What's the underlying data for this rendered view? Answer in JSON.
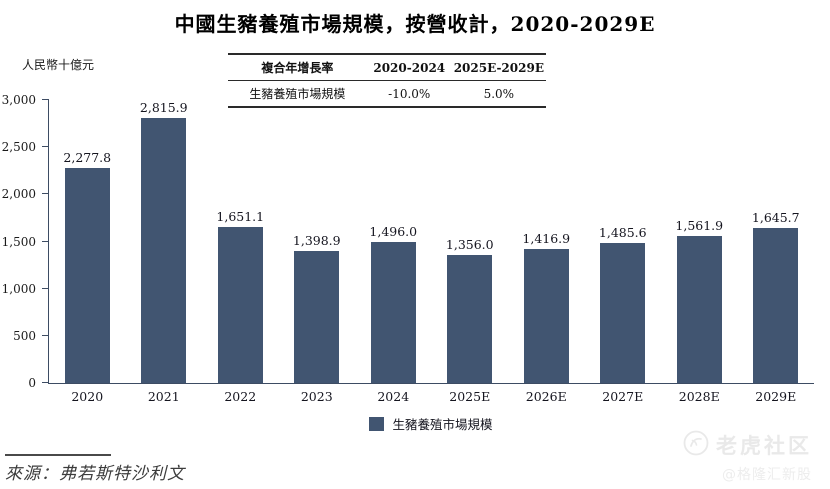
{
  "title": "中國生豬養殖市場規模，按營收計，2020-2029E",
  "unit_label": "人民幣十億元",
  "cagr_table": {
    "header": [
      "複合年增長率",
      "2020-2024",
      "2025E-2029E"
    ],
    "rows": [
      [
        "生豬養殖市場規模",
        "-10.0%",
        "5.0%"
      ]
    ]
  },
  "chart_data": {
    "type": "bar",
    "title": "中國生豬養殖市場規模，按營收計，2020-2029E",
    "xlabel": "",
    "ylabel": "人民幣十億元",
    "categories": [
      "2020",
      "2021",
      "2022",
      "2023",
      "2024",
      "2025E",
      "2026E",
      "2027E",
      "2028E",
      "2029E"
    ],
    "values": [
      2277.8,
      2815.9,
      1651.1,
      1398.9,
      1496.0,
      1356.0,
      1416.9,
      1485.6,
      1561.9,
      1645.7
    ],
    "value_labels": [
      "2,277.8",
      "2,815.9",
      "1,651.1",
      "1,398.9",
      "1,496.0",
      "1,356.0",
      "1,416.9",
      "1,485.6",
      "1,561.9",
      "1,645.7"
    ],
    "y_ticks": [
      "0",
      "500",
      "1,000",
      "1,500",
      "2,000",
      "2,500",
      "3,000"
    ],
    "ylim": [
      0,
      3000
    ],
    "grid": false,
    "legend": [
      "生豬養殖市場規模"
    ],
    "legend_position": "bottom",
    "bar_color": "#415571"
  },
  "legend_label": "生豬養殖市場規模",
  "source": "來源：弗若斯特沙利文",
  "watermark": {
    "community": "老虎社区",
    "handle": "@格隆汇新股"
  },
  "colors": {
    "bar": "#415571",
    "axis": "#3d4c63",
    "watermark": "#e9e9e9"
  }
}
